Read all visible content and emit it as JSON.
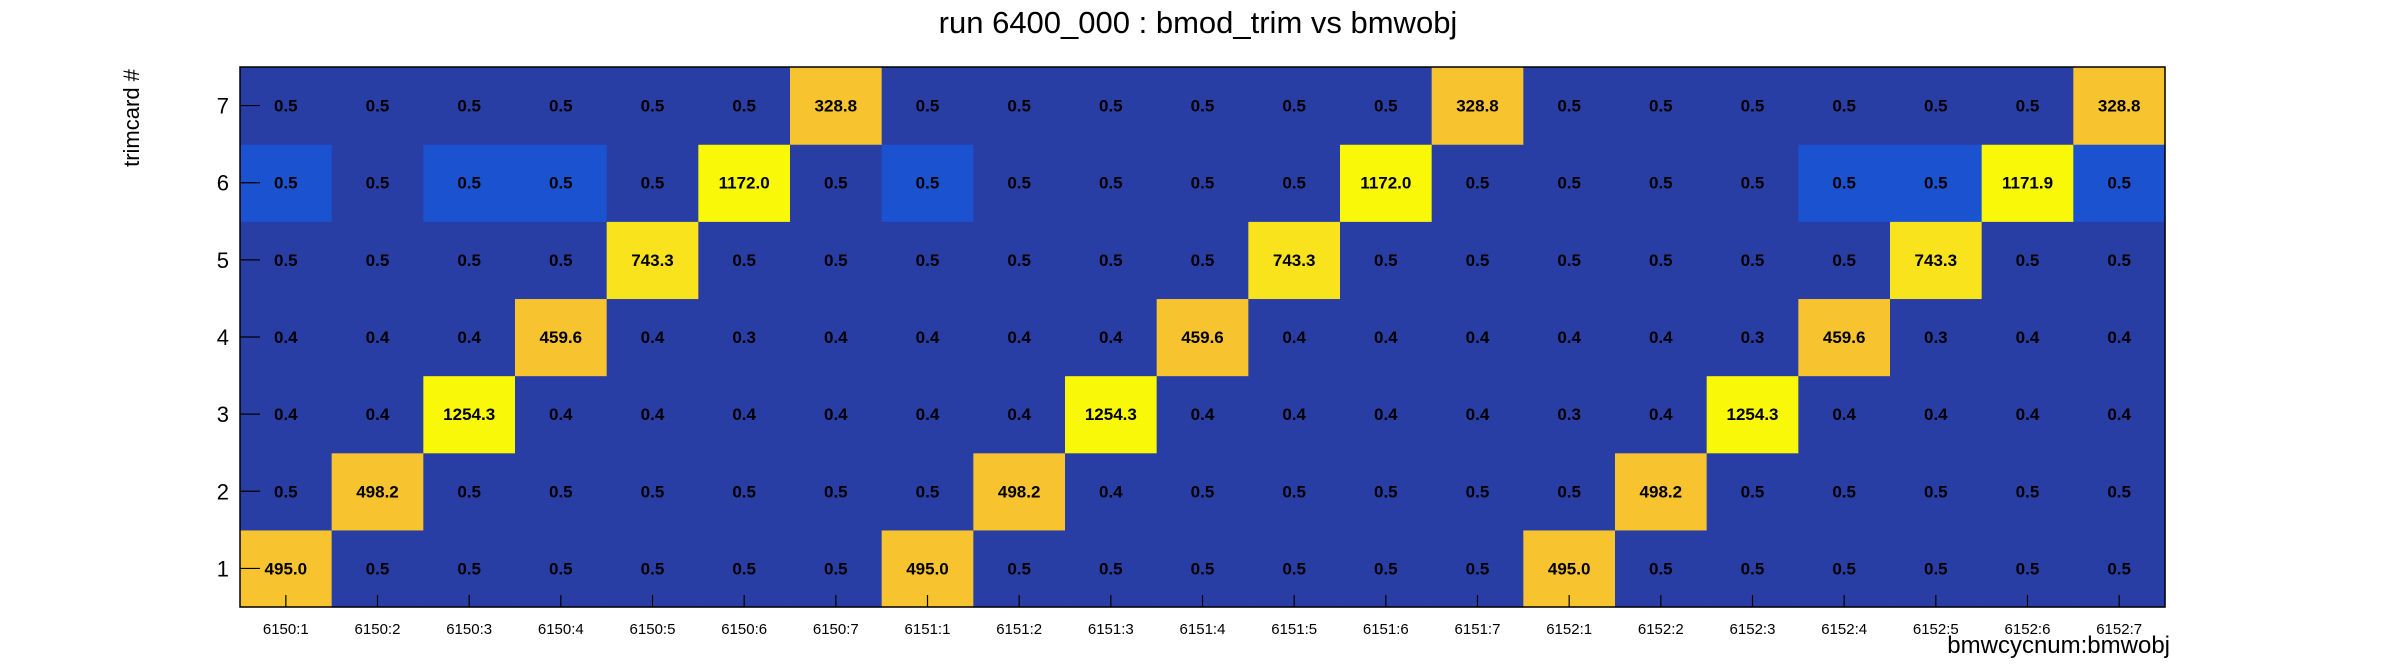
{
  "chart_data": {
    "type": "heatmap",
    "title": "run 6400_000 : bmod_trim vs bmwobj",
    "xlabel": "bmwcycnum:bmwobj",
    "ylabel": "trimcard #",
    "x_categories": [
      "6150:1",
      "6150:2",
      "6150:3",
      "6150:4",
      "6150:5",
      "6150:6",
      "6150:7",
      "6151:1",
      "6151:2",
      "6151:3",
      "6151:4",
      "6151:5",
      "6151:6",
      "6151:7",
      "6152:1",
      "6152:2",
      "6152:3",
      "6152:4",
      "6152:5",
      "6152:6",
      "6152:7"
    ],
    "y_categories": [
      "1",
      "2",
      "3",
      "4",
      "5",
      "6",
      "7"
    ],
    "values": [
      [
        495.0,
        0.5,
        0.5,
        0.5,
        0.5,
        0.5,
        0.5,
        495.0,
        0.5,
        0.5,
        0.5,
        0.5,
        0.5,
        0.5,
        495.0,
        0.5,
        0.5,
        0.5,
        0.5,
        0.5,
        0.5
      ],
      [
        0.5,
        498.2,
        0.5,
        0.5,
        0.5,
        0.5,
        0.5,
        0.5,
        498.2,
        0.4,
        0.5,
        0.5,
        0.5,
        0.5,
        0.5,
        498.2,
        0.5,
        0.5,
        0.5,
        0.5,
        0.5
      ],
      [
        0.4,
        0.4,
        1254.3,
        0.4,
        0.4,
        0.4,
        0.4,
        0.4,
        0.4,
        1254.3,
        0.4,
        0.4,
        0.4,
        0.4,
        0.3,
        0.4,
        1254.3,
        0.4,
        0.4,
        0.4,
        0.4
      ],
      [
        0.4,
        0.4,
        0.4,
        459.6,
        0.4,
        0.3,
        0.4,
        0.4,
        0.4,
        0.4,
        459.6,
        0.4,
        0.4,
        0.4,
        0.4,
        0.4,
        0.3,
        459.6,
        0.3,
        0.4,
        0.4
      ],
      [
        0.5,
        0.5,
        0.5,
        0.5,
        743.3,
        0.5,
        0.5,
        0.5,
        0.5,
        0.5,
        0.5,
        743.3,
        0.5,
        0.5,
        0.5,
        0.5,
        0.5,
        0.5,
        743.3,
        0.5,
        0.5
      ],
      [
        0.5,
        0.5,
        0.5,
        0.5,
        0.5,
        1172.0,
        0.5,
        0.5,
        0.5,
        0.5,
        0.5,
        0.5,
        1172.0,
        0.5,
        0.5,
        0.5,
        0.5,
        0.5,
        0.5,
        1171.9,
        0.5
      ],
      [
        0.5,
        0.5,
        0.5,
        0.5,
        0.5,
        0.5,
        328.8,
        0.5,
        0.5,
        0.5,
        0.5,
        0.5,
        0.5,
        328.8,
        0.5,
        0.5,
        0.5,
        0.5,
        0.5,
        0.5,
        328.8
      ]
    ],
    "cell_colors": [
      [
        "#f7c32e",
        "#283ea4",
        "#283ea4",
        "#283ea4",
        "#283ea4",
        "#283ea4",
        "#283ea4",
        "#f7c32e",
        "#283ea4",
        "#283ea4",
        "#283ea4",
        "#283ea4",
        "#283ea4",
        "#283ea4",
        "#f7c32e",
        "#283ea4",
        "#283ea4",
        "#283ea4",
        "#283ea4",
        "#283ea4",
        "#283ea4"
      ],
      [
        "#283ea4",
        "#f7c32e",
        "#283ea4",
        "#283ea4",
        "#283ea4",
        "#283ea4",
        "#283ea4",
        "#283ea4",
        "#f7c32e",
        "#283ea4",
        "#283ea4",
        "#283ea4",
        "#283ea4",
        "#283ea4",
        "#283ea4",
        "#f7c32e",
        "#283ea4",
        "#283ea4",
        "#283ea4",
        "#283ea4",
        "#283ea4"
      ],
      [
        "#283ea4",
        "#283ea4",
        "#f8f808",
        "#283ea4",
        "#283ea4",
        "#283ea4",
        "#283ea4",
        "#283ea4",
        "#283ea4",
        "#f8f808",
        "#283ea4",
        "#283ea4",
        "#283ea4",
        "#283ea4",
        "#283ea4",
        "#283ea4",
        "#f8f808",
        "#283ea4",
        "#283ea4",
        "#283ea4",
        "#283ea4"
      ],
      [
        "#283ea4",
        "#283ea4",
        "#283ea4",
        "#f7c32e",
        "#283ea4",
        "#283ea4",
        "#283ea4",
        "#283ea4",
        "#283ea4",
        "#283ea4",
        "#f7c32e",
        "#283ea4",
        "#283ea4",
        "#283ea4",
        "#283ea4",
        "#283ea4",
        "#283ea4",
        "#f7c32e",
        "#283ea4",
        "#283ea4",
        "#283ea4"
      ],
      [
        "#283ea4",
        "#283ea4",
        "#283ea4",
        "#283ea4",
        "#f8e31c",
        "#283ea4",
        "#283ea4",
        "#283ea4",
        "#283ea4",
        "#283ea4",
        "#283ea4",
        "#f8e31c",
        "#283ea4",
        "#283ea4",
        "#283ea4",
        "#283ea4",
        "#283ea4",
        "#283ea4",
        "#f8e31c",
        "#283ea4",
        "#283ea4"
      ],
      [
        "#1a52d0",
        "#283ea4",
        "#1a52d0",
        "#1a52d0",
        "#283ea4",
        "#f8f808",
        "#283ea4",
        "#1a52d0",
        "#283ea4",
        "#283ea4",
        "#283ea4",
        "#283ea4",
        "#f8f808",
        "#283ea4",
        "#283ea4",
        "#283ea4",
        "#283ea4",
        "#1a52d0",
        "#1a52d0",
        "#f8f808",
        "#1a52d0"
      ],
      [
        "#283ea4",
        "#283ea4",
        "#283ea4",
        "#283ea4",
        "#283ea4",
        "#283ea4",
        "#f7c32e",
        "#283ea4",
        "#283ea4",
        "#283ea4",
        "#283ea4",
        "#283ea4",
        "#283ea4",
        "#f7c32e",
        "#283ea4",
        "#283ea4",
        "#283ea4",
        "#283ea4",
        "#283ea4",
        "#283ea4",
        "#f7c32e"
      ]
    ],
    "grid": false,
    "legend": "none"
  }
}
